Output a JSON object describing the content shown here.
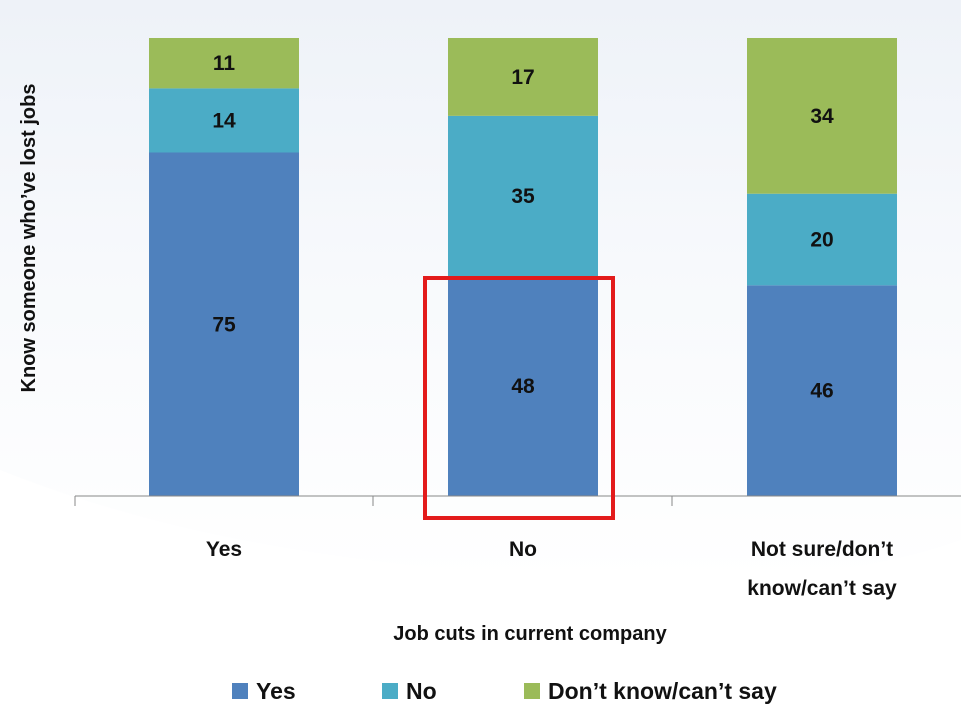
{
  "chart_data": {
    "type": "bar",
    "stacked": true,
    "categories": [
      "Yes",
      "No",
      "Not sure/don’t know/can’t say"
    ],
    "category_lines": [
      [
        "Yes"
      ],
      [
        "No"
      ],
      [
        "Not sure/don’t",
        "know/can’t say"
      ]
    ],
    "series": [
      {
        "name": "Yes",
        "values": [
          75,
          48,
          46
        ],
        "color": "#4F81BD"
      },
      {
        "name": "No",
        "values": [
          14,
          35,
          20
        ],
        "color": "#4BACC6"
      },
      {
        "name": "Don’t know/can’t say",
        "values": [
          11,
          17,
          34
        ],
        "color": "#9BBB59"
      }
    ],
    "xlabel": "Job cuts in current company",
    "ylabel": "Know someone who’ve lost jobs",
    "ylim": [
      0,
      100
    ],
    "legend_position": "bottom",
    "highlight": {
      "category": "No",
      "series": "Yes",
      "color": "#E31B1B"
    },
    "grid": false
  }
}
